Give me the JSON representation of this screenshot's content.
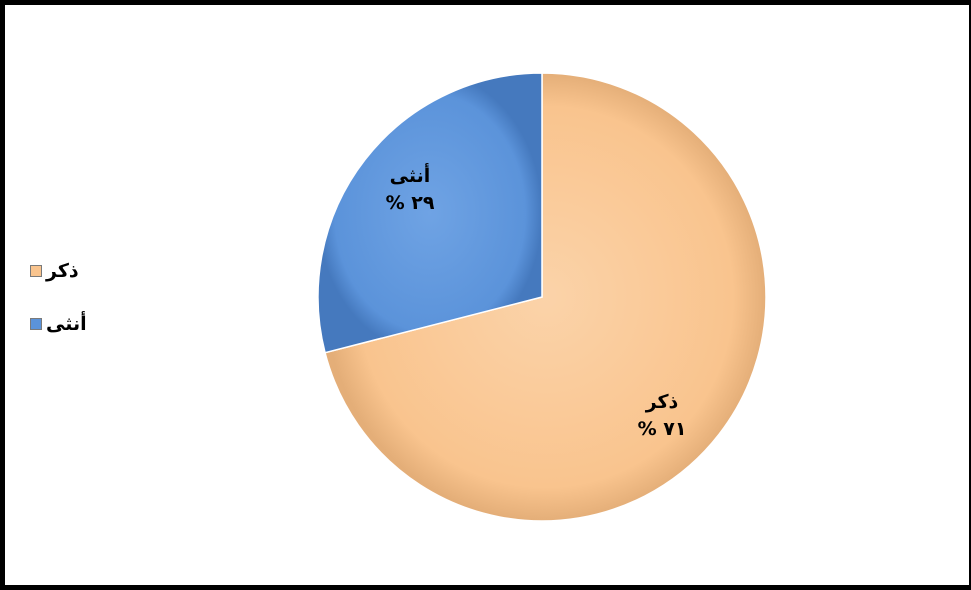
{
  "chart_data": {
    "type": "pie",
    "title": "",
    "categories": [
      "ذكر",
      "أنثى"
    ],
    "values": [
      71,
      29
    ],
    "data_labels": [
      {
        "name": "ذكر",
        "value": "٧١ %"
      },
      {
        "name": "أنثى",
        "value": "٢٩ %"
      }
    ],
    "colors": [
      "#F9C48E",
      "#5B93DA"
    ],
    "start": "12 o'clock",
    "direction": "clockwise",
    "legend": {
      "position": "left",
      "items": [
        {
          "label": "ذكر",
          "color": "#F9C48E"
        },
        {
          "label": "أنثى",
          "color": "#5B93DA"
        }
      ]
    }
  }
}
